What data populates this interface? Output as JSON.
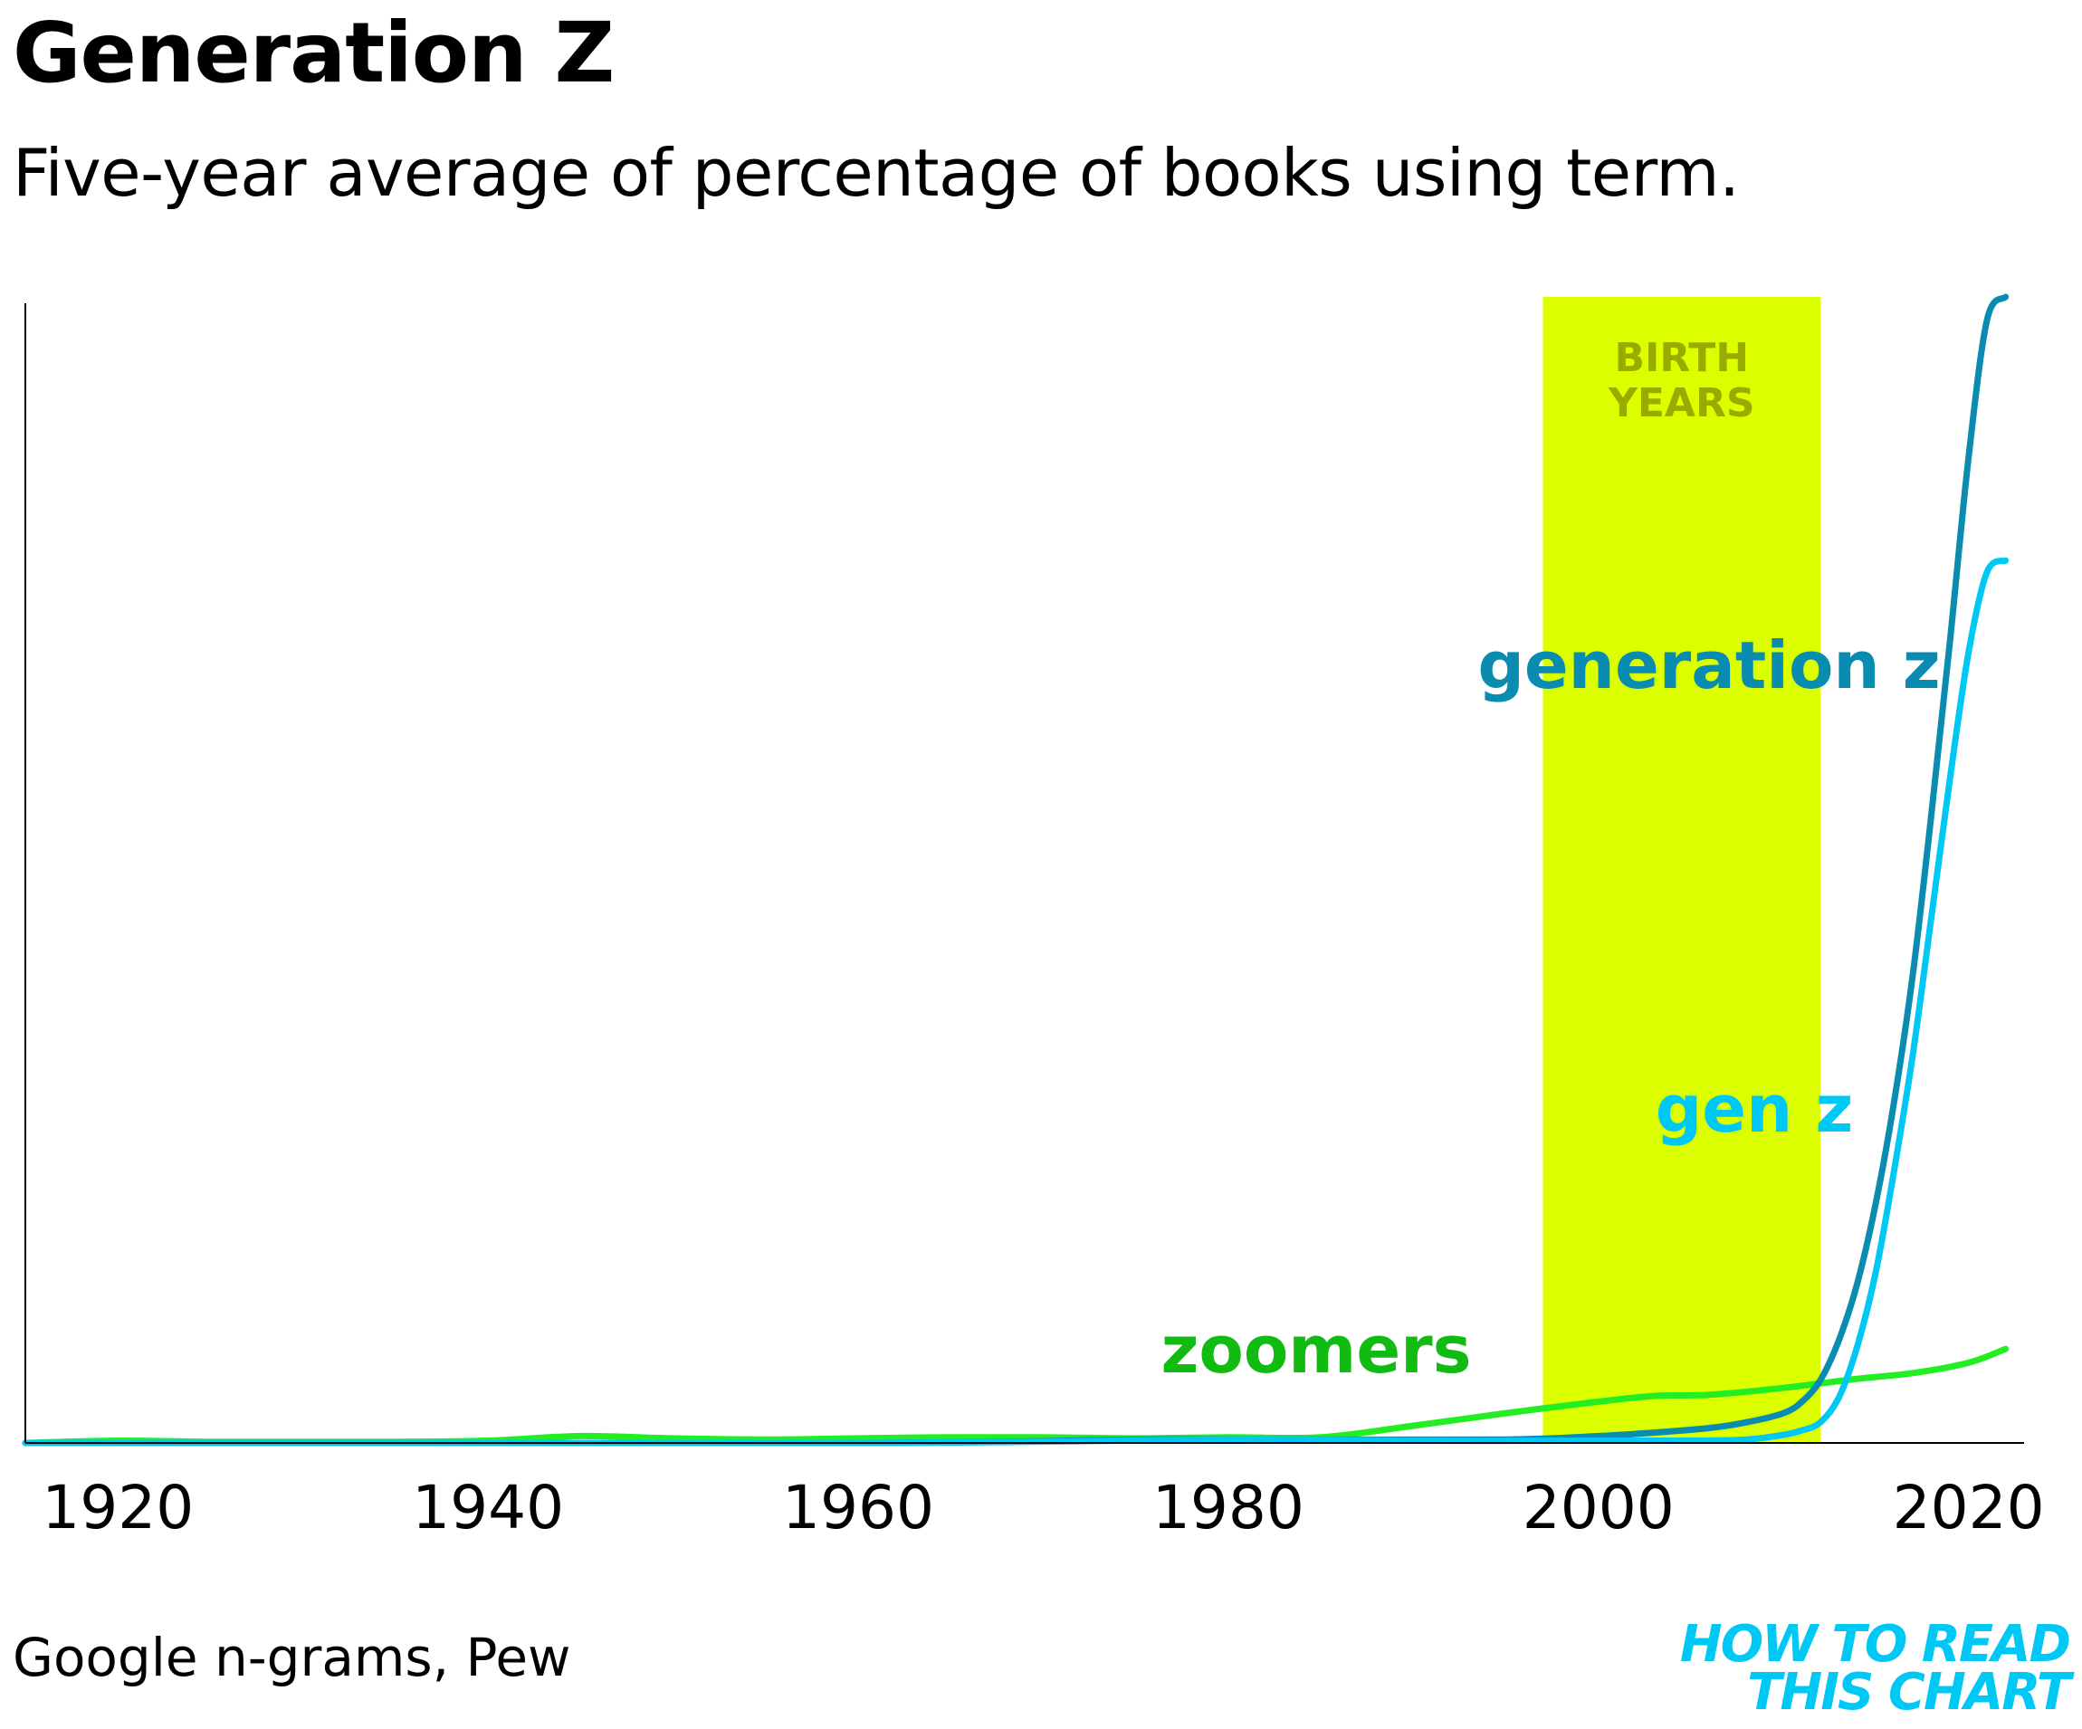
{
  "header": {
    "title": "Generation Z",
    "subtitle": "Five-year average of percentage of books using term."
  },
  "footer": {
    "source": "Google n-grams, Pew",
    "logo_line1": "HOW TO READ",
    "logo_line2": "THIS CHART"
  },
  "colors": {
    "highlight": "#dcff00",
    "highlight_text": "#9aab00",
    "generation_z": "#0a8bb0",
    "gen_z": "#00c8f5",
    "zoomers": "#22ee22",
    "zoomers_label": "#11bb11",
    "logo": "#00c8f5",
    "axis": "#000000"
  },
  "chart_data": {
    "type": "line",
    "title": "Generation Z",
    "subtitle": "Five-year average of percentage of books using term.",
    "xlabel": "",
    "ylabel": "",
    "xlim": [
      1915,
      2023
    ],
    "ylim": [
      0,
      100
    ],
    "y_units": "relative share (0 = none, 100 = peak of 'generation z'); y-axis not labeled",
    "x_ticks": [
      "1920",
      "1940",
      "1960",
      "1980",
      "2000",
      "2020"
    ],
    "x_tick_values": [
      1920,
      1940,
      1960,
      1980,
      2000,
      2020
    ],
    "highlight_band": {
      "label_line1": "BIRTH",
      "label_line2": "YEARS",
      "x_start": 1997,
      "x_end": 2012
    },
    "series": [
      {
        "name": "generation z",
        "label": "generation z",
        "x": [
          1915,
          1960,
          1975,
          1985,
          1995,
          2000,
          2003,
          2006,
          2008,
          2010,
          2011,
          2012,
          2013,
          2014,
          2015,
          2016,
          2017,
          2018,
          2019,
          2020,
          2021,
          2022
        ],
        "y": [
          0,
          0,
          0.3,
          0.3,
          0.3,
          0.6,
          0.9,
          1.3,
          1.8,
          2.6,
          3.6,
          5.5,
          9,
          14,
          21,
          30,
          41,
          55,
          70,
          86,
          98,
          100
        ]
      },
      {
        "name": "gen z",
        "label": "gen z",
        "x": [
          1915,
          1960,
          1980,
          1990,
          2000,
          2005,
          2008,
          2010,
          2011,
          2012,
          2013,
          2014,
          2015,
          2016,
          2017,
          2018,
          2019,
          2020,
          2021,
          2022
        ],
        "y": [
          0,
          0,
          0.3,
          0.2,
          0.2,
          0.2,
          0.3,
          0.7,
          1.1,
          1.8,
          4,
          8.5,
          15,
          24,
          34,
          46,
          58,
          69,
          76,
          77
        ]
      },
      {
        "name": "zoomers",
        "label": "zoomers",
        "x": [
          1915,
          1920,
          1925,
          1930,
          1935,
          1940,
          1945,
          1950,
          1955,
          1960,
          1965,
          1970,
          1975,
          1980,
          1985,
          1990,
          1995,
          2000,
          2003,
          2006,
          2010,
          2014,
          2017,
          2020,
          2022
        ],
        "y": [
          0,
          0.2,
          0.1,
          0.1,
          0.1,
          0.2,
          0.6,
          0.4,
          0.3,
          0.4,
          0.5,
          0.5,
          0.4,
          0.5,
          0.5,
          1.5,
          2.6,
          3.6,
          4.1,
          4.2,
          4.8,
          5.6,
          6.1,
          7,
          8.2
        ]
      }
    ]
  }
}
